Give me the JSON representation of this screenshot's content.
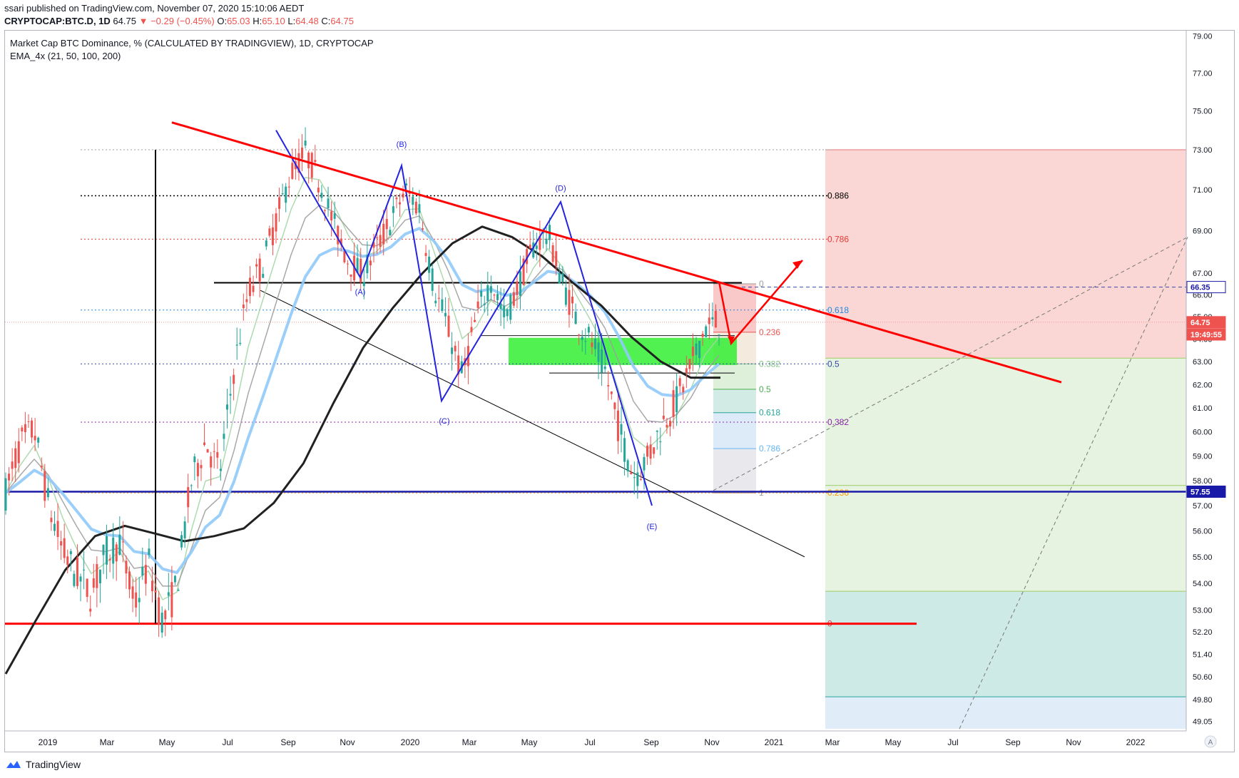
{
  "header": {
    "publisher_line": "ssari published on TradingView.com, November 07, 2020 15:10:06 AEDT",
    "symbol": "CRYPTOCAP:BTC.D, 1D",
    "last": "64.75",
    "change": "▼ −0.29 (−0.45%)",
    "o_label": "O:",
    "o_value": "65.03",
    "h_label": "H:",
    "h_value": "65.10",
    "l_label": "L:",
    "l_value": "64.48",
    "c_label": "C:",
    "c_value": "64.75"
  },
  "legend": {
    "title": "Market Cap BTC Dominance, % (CALCULATED BY TRADINGVIEW), 1D, CRYPTOCAP",
    "indicator": "EMA_4x (21, 50, 100, 200)"
  },
  "footer": {
    "brand": "TradingView"
  },
  "colors": {
    "up": "#26a69a",
    "down": "#ef5350",
    "trendline": "#ff0000",
    "pattern": "#2424e0",
    "ema21": "#a5d6a7",
    "ema50": "#9e9e9e",
    "ema100": "#90caf9",
    "ema200": "#212121",
    "green_zone": "#33ee33"
  },
  "chart_data": {
    "type": "line",
    "title": "Market Cap BTC Dominance, % (CALCULATED BY TRADINGVIEW), 1D, CRYPTOCAP",
    "ylim": [
      48.8,
      79.4
    ],
    "y_scale": "log",
    "x_ticks": [
      "2019",
      "Mar",
      "May",
      "Jul",
      "Sep",
      "Nov",
      "2020",
      "Mar",
      "May",
      "Jul",
      "Sep",
      "Nov",
      "2021",
      "Mar",
      "May",
      "Jul",
      "Sep",
      "Nov",
      "2022"
    ],
    "y_ticks": [
      "79.00",
      "77.00",
      "75.00",
      "73.00",
      "71.00",
      "69.00",
      "67.00",
      "66.00",
      "65.00",
      "64.00",
      "63.00",
      "62.00",
      "61.00",
      "60.00",
      "59.00",
      "58.00",
      "57.00",
      "56.00",
      "55.00",
      "54.00",
      "53.00",
      "52.20",
      "51.40",
      "50.60",
      "49.80",
      "49.05"
    ],
    "series": [
      {
        "name": "BTC.D",
        "values": [
          57.5,
          59.5,
          60.1,
          57.0,
          55.2,
          54.3,
          53.6,
          55.1,
          55.6,
          53.1,
          54.8,
          52.5,
          53.9,
          57.9,
          59.6,
          58.3,
          62.7,
          66.1,
          67.4,
          69.6,
          71.8,
          72.9,
          71.4,
          69.3,
          67.6,
          66.9,
          68.2,
          69.5,
          71.0,
          70.1,
          66.4,
          64.5,
          62.3,
          65.0,
          66.7,
          64.9,
          66.5,
          68.3,
          68.9,
          66.6,
          64.9,
          63.9,
          62.6,
          60.1,
          58.2,
          58.9,
          60.3,
          61.3,
          62.7,
          64.5,
          64.75
        ]
      },
      {
        "name": "EMA 200",
        "values": [
          50.7,
          52.6,
          54.5,
          55.8,
          56.2,
          55.9,
          55.6,
          55.8,
          56.1,
          57.1,
          58.7,
          61.2,
          63.6,
          65.4,
          67.0,
          68.4,
          69.2,
          68.7,
          67.8,
          66.6,
          65.5,
          64.1,
          63.0,
          62.3,
          62.3
        ]
      }
    ],
    "fib_left": [
      {
        "label": "0.886",
        "value": 70.7
      },
      {
        "label": "0.786",
        "value": 68.6
      },
      {
        "label": "0.618",
        "value": 65.3
      },
      {
        "label": "0.5",
        "value": 62.9
      },
      {
        "label": "0.382",
        "value": 60.4
      },
      {
        "label": "0.236",
        "value": 57.5
      },
      {
        "label": "0",
        "value": 52.5
      }
    ],
    "fib_right": [
      {
        "label": "0",
        "value": 66.5
      },
      {
        "label": "0.236",
        "value": 64.3
      },
      {
        "label": "0.382",
        "value": 62.9
      },
      {
        "label": "0.5",
        "value": 61.8
      },
      {
        "label": "0.618",
        "value": 60.8
      },
      {
        "label": "0.786",
        "value": 59.3
      },
      {
        "label": "1",
        "value": 57.5
      }
    ],
    "pattern_labels": [
      "(A)",
      "(B)",
      "(C)",
      "(D)",
      "(E)"
    ],
    "price_tags": [
      {
        "label": "66.35",
        "value": 66.35
      },
      {
        "label": "64.75",
        "value": 64.75
      },
      {
        "label": "19:49:55",
        "value": 64.2
      },
      {
        "label": "57.55",
        "value": 57.55
      }
    ]
  }
}
